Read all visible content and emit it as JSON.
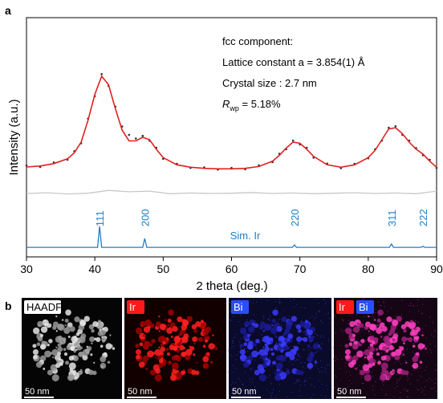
{
  "chart_data": {
    "type": "line",
    "panel_label": "a",
    "xlabel": "2 theta (deg.)",
    "ylabel": "Intensity (a.u.)",
    "xlim": [
      30,
      90
    ],
    "xticks": [
      30,
      40,
      50,
      60,
      70,
      80,
      90
    ],
    "ylim": [
      0,
      100
    ],
    "annotations": [
      "fcc component:",
      "Lattice constant a = 3.854(1) Å",
      "Crystal size : 2.7 nm",
      {
        "main": "R",
        "sub": "wp",
        "rest": " = 5.18%"
      }
    ],
    "series": [
      {
        "style": "dots",
        "color": "#333333",
        "x": [
          30,
          32,
          34,
          36,
          37,
          38,
          39,
          40,
          41,
          42,
          43,
          44,
          45,
          46,
          47,
          48,
          49,
          50,
          52,
          54,
          56,
          58,
          60,
          62,
          64,
          66,
          67,
          68,
          69,
          70,
          71,
          72,
          74,
          76,
          78,
          80,
          81,
          82,
          83,
          84,
          85,
          86,
          87,
          88,
          89,
          90
        ],
        "values": [
          38.2,
          37.6,
          39.5,
          40.6,
          44.2,
          47.5,
          57.8,
          67.2,
          76.4,
          71.5,
          62.8,
          54.5,
          51,
          49.5,
          50.6,
          48.6,
          45.6,
          41,
          38.9,
          37.2,
          37.4,
          36.5,
          37.2,
          36.6,
          38.3,
          39.6,
          43.1,
          45,
          48.6,
          47,
          45.6,
          41.5,
          39,
          37.1,
          38.9,
          41.2,
          45,
          48.6,
          54,
          54.6,
          51,
          48.6,
          45.5,
          42.5,
          40.6,
          37.2
        ]
      },
      {
        "style": "line",
        "color": "#e02020",
        "x": [
          30,
          32,
          34,
          36,
          37,
          38,
          39,
          40,
          41,
          42,
          43,
          44,
          45,
          46,
          47,
          48,
          49,
          50,
          52,
          54,
          56,
          58,
          60,
          62,
          64,
          66,
          67,
          68,
          69,
          70,
          71,
          72,
          74,
          76,
          78,
          80,
          81,
          82,
          83,
          84,
          85,
          86,
          87,
          88,
          89,
          90
        ],
        "values": [
          37.6,
          38,
          39,
          41,
          43.5,
          48,
          57,
          68,
          75.5,
          72,
          62,
          53,
          48.5,
          48.5,
          50,
          49,
          45,
          41.5,
          38.5,
          37.5,
          37,
          36.8,
          36.8,
          37,
          37.8,
          40,
          42.5,
          45.5,
          48,
          47.5,
          45,
          42,
          38.5,
          37.5,
          38.5,
          41.5,
          44.5,
          49,
          53.5,
          54,
          51.5,
          48,
          45,
          43,
          40,
          37.5
        ]
      },
      {
        "style": "line",
        "color": "#c8c8c8",
        "x": [
          30,
          33,
          36,
          39,
          42,
          45,
          48,
          51,
          54,
          57,
          60,
          63,
          66,
          69,
          72,
          75,
          78,
          81,
          84,
          87,
          90
        ],
        "values": [
          26.5,
          26.8,
          26.3,
          26.6,
          27.8,
          27.2,
          27.5,
          26.4,
          26.7,
          26.5,
          26.6,
          26.9,
          26.5,
          26.7,
          26.4,
          26.6,
          26.8,
          26.5,
          26.7,
          26.4,
          27.5
        ]
      },
      {
        "style": "line",
        "name": "Sim. Ir",
        "color": "#1f7fc4",
        "x": [
          30,
          40.4,
          40.7,
          41.0,
          47.0,
          47.3,
          47.6,
          68.9,
          69.2,
          69.5,
          83.1,
          83.4,
          83.7,
          87.7,
          88.0,
          88.3,
          90
        ],
        "values": [
          4,
          4,
          12.8,
          4,
          4,
          7.7,
          4,
          4,
          5,
          4,
          4,
          5.4,
          4,
          4,
          4.4,
          4,
          4
        ],
        "peaks": [
          {
            "x": 40.7,
            "label": "111"
          },
          {
            "x": 47.3,
            "label": "200"
          },
          {
            "x": 69.2,
            "label": "220"
          },
          {
            "x": 83.4,
            "label": "311"
          },
          {
            "x": 88.0,
            "label": "222"
          }
        ]
      }
    ]
  },
  "images": {
    "panel_label": "b",
    "panels": [
      {
        "labels": [
          {
            "text": "HAADF",
            "color": "#ffffff"
          }
        ],
        "scale_bar": "50 nm"
      },
      {
        "labels": [
          {
            "text": "Ir",
            "color": "#ff1a1a"
          }
        ],
        "scale_bar": "50 nm"
      },
      {
        "labels": [
          {
            "text": "Bi",
            "color": "#2a4dff"
          }
        ],
        "scale_bar": "50 nm"
      },
      {
        "labels": [
          {
            "text": "Ir",
            "color": "#ff1a1a"
          },
          {
            "text": "Bi",
            "color": "#2a4dff"
          }
        ],
        "scale_bar": "50 nm"
      }
    ]
  }
}
